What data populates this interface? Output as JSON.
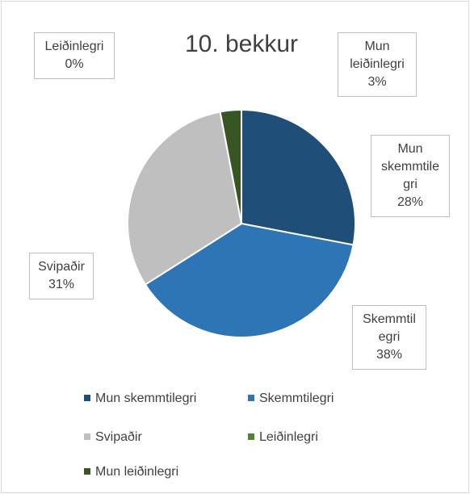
{
  "chart_data": {
    "type": "pie",
    "title": "10. bekkur",
    "categories": [
      "Mun skemmtilegri",
      "Skemmtilegri",
      "Svipaðir",
      "Leiðinlegri",
      "Mun leiðinlegri"
    ],
    "values": [
      28,
      38,
      31,
      0,
      3
    ],
    "value_labels": [
      "28%",
      "38%",
      "31%",
      "0%",
      "3%"
    ],
    "colors": [
      "#1f4e79",
      "#2e75b6",
      "#bfbfbf",
      "#548235",
      "#375623"
    ],
    "legend": "bottom"
  }
}
